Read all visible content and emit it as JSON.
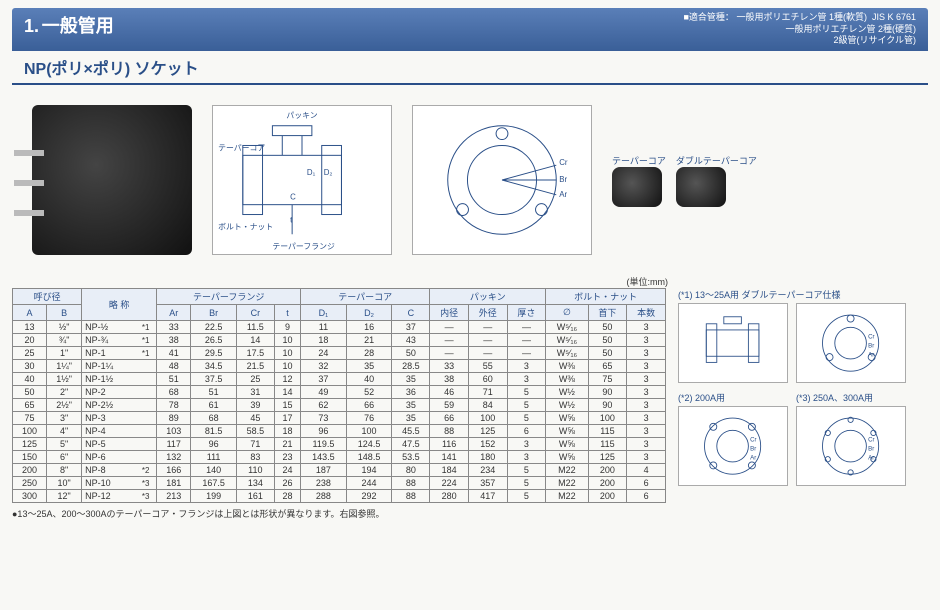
{
  "header": {
    "section_number": "1.",
    "section_title": "一般管用",
    "compat_label": "■適合管種：",
    "compat_lines": [
      "一般用ポリエチレン管 1種(軟質)",
      "一般用ポリエチレン管 2種(硬質)",
      "2級管(リサイクル管)"
    ],
    "jis": "JIS K 6761",
    "subtitle": "NP(ポリ×ポリ) ソケット"
  },
  "diagram_labels": {
    "packing": "パッキン",
    "taper_core": "テーパーコア",
    "bolt_nut": "ボルト・ナット",
    "taper_flange": "テーパーフランジ",
    "double_taper_core": "ダブルテーパーコア"
  },
  "unit": "(単位:mm)",
  "table": {
    "group_headers": [
      "呼び径",
      "略 称",
      "テーパーフランジ",
      "テーパーコア",
      "パッキン",
      "ボルト・ナット"
    ],
    "sub_headers": [
      "A",
      "B",
      "",
      "Ar",
      "Br",
      "Cr",
      "t",
      "D₁",
      "D₂",
      "C",
      "内径",
      "外径",
      "厚さ",
      "∅",
      "首下",
      "本数"
    ],
    "rows": [
      [
        "13",
        "½\"",
        "NP-½",
        "*1",
        "33",
        "22.5",
        "11.5",
        "9",
        "11",
        "16",
        "37",
        "—",
        "—",
        "—",
        "W⁵⁄₁₆",
        "50",
        "3"
      ],
      [
        "20",
        "¾\"",
        "NP-¾",
        "*1",
        "38",
        "26.5",
        "14",
        "10",
        "18",
        "21",
        "43",
        "—",
        "—",
        "—",
        "W⁵⁄₁₆",
        "50",
        "3"
      ],
      [
        "25",
        "1\"",
        "NP-1",
        "*1",
        "41",
        "29.5",
        "17.5",
        "10",
        "24",
        "28",
        "50",
        "—",
        "—",
        "—",
        "W⁵⁄₁₆",
        "50",
        "3"
      ],
      [
        "30",
        "1¼\"",
        "NP-1¼",
        "",
        "48",
        "34.5",
        "21.5",
        "10",
        "32",
        "35",
        "28.5",
        "33",
        "55",
        "3",
        "W⅜",
        "65",
        "3"
      ],
      [
        "40",
        "1½\"",
        "NP-1½",
        "",
        "51",
        "37.5",
        "25",
        "12",
        "37",
        "40",
        "35",
        "38",
        "60",
        "3",
        "W⅜",
        "75",
        "3"
      ],
      [
        "50",
        "2\"",
        "NP-2",
        "",
        "68",
        "51",
        "31",
        "14",
        "49",
        "52",
        "36",
        "46",
        "71",
        "5",
        "W½",
        "90",
        "3"
      ],
      [
        "65",
        "2½\"",
        "NP-2½",
        "",
        "78",
        "61",
        "39",
        "15",
        "62",
        "66",
        "35",
        "59",
        "84",
        "5",
        "W½",
        "90",
        "3"
      ],
      [
        "75",
        "3\"",
        "NP-3",
        "",
        "89",
        "68",
        "45",
        "17",
        "73",
        "76",
        "35",
        "66",
        "100",
        "5",
        "W⅝",
        "100",
        "3"
      ],
      [
        "100",
        "4\"",
        "NP-4",
        "",
        "103",
        "81.5",
        "58.5",
        "18",
        "96",
        "100",
        "45.5",
        "88",
        "125",
        "6",
        "W⅝",
        "115",
        "3"
      ],
      [
        "125",
        "5\"",
        "NP-5",
        "",
        "117",
        "96",
        "71",
        "21",
        "119.5",
        "124.5",
        "47.5",
        "116",
        "152",
        "3",
        "W⅝",
        "115",
        "3"
      ],
      [
        "150",
        "6\"",
        "NP-6",
        "",
        "132",
        "111",
        "83",
        "23",
        "143.5",
        "148.5",
        "53.5",
        "141",
        "180",
        "3",
        "W⅝",
        "125",
        "3"
      ],
      [
        "200",
        "8\"",
        "NP-8",
        "*2",
        "166",
        "140",
        "110",
        "24",
        "187",
        "194",
        "80",
        "184",
        "234",
        "5",
        "M22",
        "200",
        "4"
      ],
      [
        "250",
        "10\"",
        "NP-10",
        "*3",
        "181",
        "167.5",
        "134",
        "26",
        "238",
        "244",
        "88",
        "224",
        "357",
        "5",
        "M22",
        "200",
        "6"
      ],
      [
        "300",
        "12\"",
        "NP-12",
        "*3",
        "213",
        "199",
        "161",
        "28",
        "288",
        "292",
        "88",
        "280",
        "417",
        "5",
        "M22",
        "200",
        "6"
      ]
    ]
  },
  "note": "●13～25A、200～300Aのテーパーコア・フランジは上図とは形状が異なります。右図参照。",
  "side": {
    "l1": "(*1) 13～25A用 ダブルテーパーコア仕様",
    "l2": "(*2) 200A用",
    "l3": "(*3) 250A、300A用"
  },
  "colors": {
    "brand": "#2a4f88",
    "band_top": "#5a7fb8",
    "band_bottom": "#3a5f98",
    "th_bg": "#e8eef7",
    "border": "#888888"
  }
}
